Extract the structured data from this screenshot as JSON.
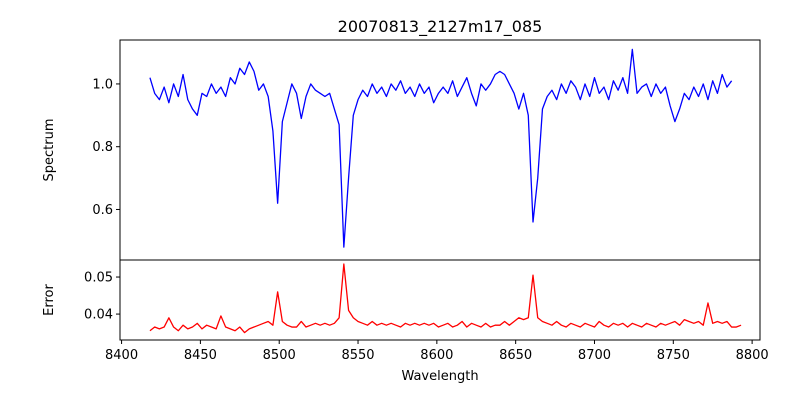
{
  "chart_data": [
    {
      "type": "line",
      "title": "20070813_2127m17_085",
      "xlabel": "",
      "ylabel": "Spectrum",
      "xlim": [
        8399,
        8805
      ],
      "ylim": [
        0.439,
        1.14
      ],
      "yticks": [
        0.6,
        0.8,
        1.0
      ],
      "ytick_labels": [
        "0.6",
        "0.8",
        "1.0"
      ],
      "grid": false,
      "series": [
        {
          "name": "Spectrum",
          "color": "#0000ff",
          "x_start": 8418,
          "x_step": 3,
          "values": [
            1.02,
            0.97,
            0.95,
            0.99,
            0.94,
            1.0,
            0.96,
            1.03,
            0.95,
            0.92,
            0.9,
            0.97,
            0.96,
            1.0,
            0.97,
            0.99,
            0.96,
            1.02,
            1.0,
            1.05,
            1.03,
            1.07,
            1.04,
            0.98,
            1.0,
            0.96,
            0.85,
            0.62,
            0.88,
            0.94,
            1.0,
            0.97,
            0.89,
            0.96,
            1.0,
            0.98,
            0.97,
            0.96,
            0.97,
            0.92,
            0.87,
            0.48,
            0.7,
            0.9,
            0.95,
            0.98,
            0.96,
            1.0,
            0.97,
            0.99,
            0.96,
            1.0,
            0.98,
            1.01,
            0.97,
            0.99,
            0.96,
            1.0,
            0.97,
            0.99,
            0.94,
            0.97,
            0.99,
            0.97,
            1.01,
            0.96,
            0.99,
            1.02,
            0.97,
            0.93,
            1.0,
            0.98,
            1.0,
            1.03,
            1.04,
            1.03,
            1.0,
            0.97,
            0.92,
            0.97,
            0.9,
            0.56,
            0.7,
            0.92,
            0.96,
            0.98,
            0.95,
            1.0,
            0.97,
            1.01,
            0.99,
            0.95,
            1.0,
            0.96,
            1.02,
            0.97,
            0.99,
            0.95,
            1.01,
            0.98,
            1.02,
            0.97,
            1.11,
            0.97,
            0.99,
            1.0,
            0.96,
            1.0,
            0.97,
            0.99,
            0.93,
            0.88,
            0.92,
            0.97,
            0.95,
            0.99,
            0.96,
            1.0,
            0.95,
            1.01,
            0.97,
            1.03,
            0.99,
            1.01
          ]
        }
      ]
    },
    {
      "type": "line",
      "title": "",
      "xlabel": "Wavelength",
      "ylabel": "Error",
      "xlim": [
        8399,
        8805
      ],
      "ylim": [
        0.033,
        0.0546
      ],
      "xticks": [
        8400,
        8450,
        8500,
        8550,
        8600,
        8650,
        8700,
        8750,
        8800
      ],
      "xtick_labels": [
        "8400",
        "8450",
        "8500",
        "8550",
        "8600",
        "8650",
        "8700",
        "8750",
        "8800"
      ],
      "yticks": [
        0.04,
        0.05
      ],
      "ytick_labels": [
        "0.04",
        "0.05"
      ],
      "grid": false,
      "series": [
        {
          "name": "Error",
          "color": "#ff0000",
          "x_start": 8418,
          "x_step": 3,
          "values": [
            0.0355,
            0.0365,
            0.036,
            0.0365,
            0.039,
            0.0365,
            0.0355,
            0.037,
            0.036,
            0.0365,
            0.0375,
            0.036,
            0.037,
            0.0365,
            0.036,
            0.0395,
            0.0365,
            0.036,
            0.0355,
            0.0365,
            0.035,
            0.036,
            0.0365,
            0.037,
            0.0375,
            0.038,
            0.037,
            0.046,
            0.038,
            0.037,
            0.0365,
            0.0365,
            0.038,
            0.0365,
            0.037,
            0.0375,
            0.037,
            0.0375,
            0.037,
            0.0375,
            0.039,
            0.0535,
            0.041,
            0.039,
            0.038,
            0.0375,
            0.037,
            0.038,
            0.037,
            0.0375,
            0.037,
            0.0375,
            0.037,
            0.0365,
            0.0375,
            0.037,
            0.0375,
            0.037,
            0.0375,
            0.037,
            0.0375,
            0.0365,
            0.037,
            0.0375,
            0.0365,
            0.037,
            0.038,
            0.0365,
            0.0375,
            0.037,
            0.0365,
            0.0375,
            0.0365,
            0.037,
            0.037,
            0.038,
            0.037,
            0.038,
            0.039,
            0.0385,
            0.039,
            0.0505,
            0.039,
            0.038,
            0.0375,
            0.037,
            0.038,
            0.037,
            0.0365,
            0.0375,
            0.037,
            0.0365,
            0.0375,
            0.037,
            0.0365,
            0.038,
            0.037,
            0.0365,
            0.0375,
            0.037,
            0.0375,
            0.0365,
            0.0375,
            0.037,
            0.0365,
            0.0375,
            0.037,
            0.0365,
            0.0375,
            0.037,
            0.0375,
            0.038,
            0.037,
            0.0385,
            0.038,
            0.0375,
            0.038,
            0.037,
            0.043,
            0.0375,
            0.038,
            0.0375,
            0.038,
            0.0365,
            0.0365,
            0.037
          ]
        }
      ]
    }
  ]
}
